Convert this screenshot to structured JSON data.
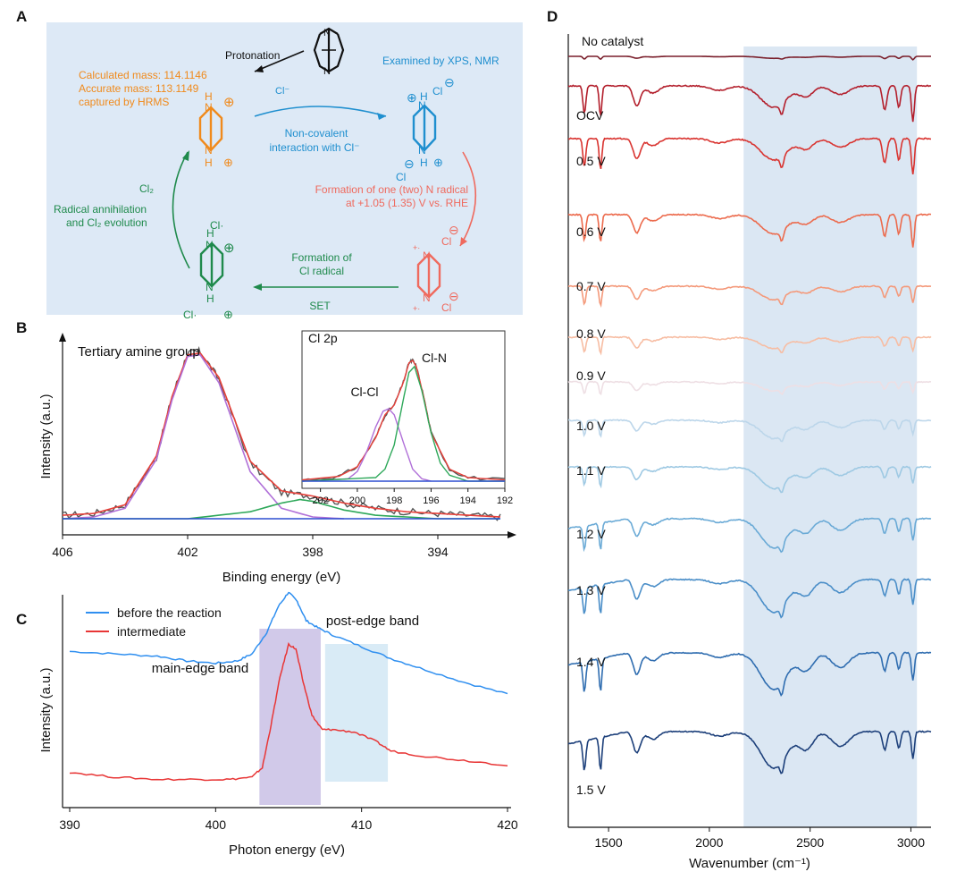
{
  "panels": {
    "A": "A",
    "B": "B",
    "C": "C",
    "D": "D"
  },
  "colors": {
    "scheme_bg": "#dde9f6",
    "orange": "#f08a1c",
    "blue": "#1f8fcf",
    "red": "#ef6a5e",
    "green": "#1f8a4c",
    "purple": "#9b3ad8"
  },
  "schemeA": {
    "protonation": "Protonation",
    "xps_nmr": "Examined by XPS, NMR",
    "calc_mass": "Calculated mass: 114.1146",
    "acc_mass": "Accurate mass: 113.1149",
    "captured": "captured by HRMS",
    "cl_minus": "Cl⁻",
    "noncov1": "Non-covalent",
    "noncov2": "interaction with Cl⁻",
    "form1": "Formation of one (two) N radical",
    "form2": "at +1.05 (1.35) V vs. RHE",
    "cl2": "Cl₂",
    "annih1": "Radical annihilation",
    "annih2": "and Cl₂ evolution",
    "formcl1": "Formation of",
    "formcl2": "Cl radical",
    "set": "SET",
    "N": "N",
    "H": "H",
    "Cl": "Cl",
    "cl_rad": "Cl·"
  },
  "chart_data": [
    {
      "id": "B",
      "type": "line",
      "xlabel": "Binding energy (eV)",
      "ylabel": "Intensity (a.u.)",
      "xlim": [
        406,
        392
      ],
      "xticks": [
        406,
        402,
        398,
        394
      ],
      "annotation": "Tertiary amine group",
      "series": [
        {
          "color": "#555555",
          "x": [
            406,
            405,
            404,
            403,
            402.5,
            402,
            401.6,
            401,
            400,
            399,
            398,
            397,
            396,
            395,
            394,
            393,
            392
          ],
          "y": [
            0.02,
            0.03,
            0.08,
            0.35,
            0.7,
            0.95,
            0.96,
            0.8,
            0.32,
            0.15,
            0.13,
            0.09,
            0.06,
            0.04,
            0.03,
            0.02,
            0.01
          ]
        },
        {
          "color": "#e8403a",
          "x": [
            406,
            405,
            404,
            403,
            402.5,
            402,
            401.6,
            401,
            400,
            399,
            398,
            397,
            396,
            395,
            394,
            393,
            392
          ],
          "y": [
            0.02,
            0.03,
            0.08,
            0.36,
            0.7,
            0.94,
            0.95,
            0.81,
            0.33,
            0.16,
            0.13,
            0.09,
            0.06,
            0.04,
            0.03,
            0.02,
            0.01
          ]
        },
        {
          "color": "#b070d8",
          "x": [
            406,
            405,
            404,
            403,
            402.5,
            402,
            401.6,
            401,
            400,
            399,
            398,
            397
          ],
          "y": [
            0.0,
            0.01,
            0.06,
            0.34,
            0.68,
            0.93,
            0.94,
            0.78,
            0.27,
            0.06,
            0.01,
            0.0
          ]
        },
        {
          "color": "#2ea85a",
          "x": [
            406,
            402,
            400,
            399,
            398.4,
            398,
            397,
            396,
            394,
            392
          ],
          "y": [
            0.0,
            0.0,
            0.04,
            0.09,
            0.11,
            0.1,
            0.05,
            0.02,
            0.0,
            0.0
          ]
        },
        {
          "color": "#2d4fd0",
          "x": [
            406,
            392
          ],
          "y": [
            0.0,
            0.0
          ]
        }
      ],
      "inset": {
        "title": "Cl 2p",
        "xlim": [
          203,
          192
        ],
        "xticks": [
          202,
          200,
          198,
          196,
          194,
          192
        ],
        "labels": [
          "Cl-Cl",
          "Cl-N"
        ],
        "series": [
          {
            "color": "#555555",
            "x": [
              203,
              201,
              200,
              199,
              198.5,
              198,
              197.5,
              197.2,
              197,
              196.8,
              196.4,
              196,
              195,
              194,
              192
            ],
            "y": [
              0.01,
              0.04,
              0.12,
              0.36,
              0.55,
              0.63,
              0.82,
              0.98,
              1.0,
              0.95,
              0.7,
              0.4,
              0.1,
              0.03,
              0.01
            ]
          },
          {
            "color": "#e8403a",
            "x": [
              203,
              201,
              200,
              199,
              198.5,
              198,
              197.5,
              197.2,
              197,
              196.8,
              196.4,
              196,
              195,
              194,
              192
            ],
            "y": [
              0.01,
              0.04,
              0.12,
              0.36,
              0.55,
              0.63,
              0.82,
              0.98,
              1.0,
              0.95,
              0.7,
              0.4,
              0.1,
              0.03,
              0.01
            ]
          },
          {
            "color": "#b070d8",
            "x": [
              203,
              200.5,
              200,
              199.5,
              199,
              198.6,
              198.3,
              198,
              197.5,
              197,
              196.5,
              196
            ],
            "y": [
              0.0,
              0.02,
              0.08,
              0.24,
              0.45,
              0.58,
              0.6,
              0.55,
              0.32,
              0.1,
              0.02,
              0.0
            ]
          },
          {
            "color": "#2ea85a",
            "x": [
              203,
              199,
              198.5,
              198,
              197.5,
              197.2,
              196.9,
              196.5,
              196,
              195.5,
              195,
              194,
              192
            ],
            "y": [
              0.0,
              0.03,
              0.1,
              0.3,
              0.68,
              0.9,
              0.95,
              0.75,
              0.4,
              0.15,
              0.05,
              0.0,
              0.0
            ]
          },
          {
            "color": "#2d4fd0",
            "x": [
              203,
              192
            ],
            "y": [
              0.0,
              0.0
            ]
          }
        ]
      }
    },
    {
      "id": "C",
      "type": "line",
      "xlabel": "Photon energy (eV)",
      "ylabel": "Intensity (a.u.)",
      "xlim": [
        390,
        420
      ],
      "xticks": [
        390,
        400,
        410,
        420
      ],
      "bands": [
        {
          "label": "main-edge band",
          "x": [
            403,
            407.2
          ],
          "color": "#c9bfe5"
        },
        {
          "label": "post-edge band",
          "x": [
            407.5,
            411.8
          ],
          "color": "#d2e8f5"
        }
      ],
      "series": [
        {
          "name": "before the reaction",
          "color": "#2f8ff0",
          "x": [
            390,
            393,
            396,
            398,
            400,
            401.5,
            402.5,
            403.5,
            404.3,
            405,
            405.6,
            406.2,
            407,
            408,
            410,
            412,
            414,
            417,
            420
          ],
          "y": [
            0.61,
            0.6,
            0.59,
            0.57,
            0.56,
            0.57,
            0.6,
            0.69,
            0.8,
            0.86,
            0.82,
            0.74,
            0.71,
            0.68,
            0.63,
            0.58,
            0.54,
            0.48,
            0.43
          ]
        },
        {
          "name": "intermediate",
          "color": "#e83636",
          "x": [
            390,
            393,
            396,
            399,
            401,
            402.5,
            403.2,
            403.8,
            404.4,
            405,
            405.5,
            406,
            406.6,
            407.3,
            408,
            409.5,
            411,
            412,
            414,
            417,
            420
          ],
          "y": [
            0.1,
            0.08,
            0.07,
            0.07,
            0.07,
            0.08,
            0.12,
            0.3,
            0.5,
            0.64,
            0.62,
            0.48,
            0.34,
            0.28,
            0.28,
            0.27,
            0.23,
            0.19,
            0.17,
            0.15,
            0.13
          ]
        }
      ]
    },
    {
      "id": "D",
      "type": "line",
      "xlabel": "Wavenumber (cm⁻¹)",
      "xlim": [
        1300,
        3100
      ],
      "xticks": [
        1500,
        2000,
        2500,
        3000
      ],
      "band": {
        "x": [
          2170,
          3030
        ],
        "color": "#dbe7f3"
      },
      "series": [
        {
          "name": "No catalyst",
          "color": "#7a1f2b",
          "depth": 0.15
        },
        {
          "name": "OCV",
          "color": "#b31f2c",
          "depth": 1.0
        },
        {
          "name": "0.5 V",
          "color": "#d9332f",
          "depth": 1.0
        },
        {
          "name": "0.6 V",
          "color": "#ec6a4c",
          "depth": 0.9
        },
        {
          "name": "0.7 V",
          "color": "#f4997a",
          "depth": 0.6
        },
        {
          "name": "0.8 V",
          "color": "#f7bda3",
          "depth": 0.5
        },
        {
          "name": "0.9 V",
          "color": "#eedfe4",
          "depth": 0.4
        },
        {
          "name": "1.0 V",
          "color": "#bcd6ea",
          "depth": 0.5
        },
        {
          "name": "1.1 V",
          "color": "#9ec9e3",
          "depth": 0.6
        },
        {
          "name": "1.2 V",
          "color": "#6aaad6",
          "depth": 0.8
        },
        {
          "name": "1.3 V",
          "color": "#4a8ec8",
          "depth": 0.9
        },
        {
          "name": "1.4 V",
          "color": "#2f6db0",
          "depth": 1.0
        },
        {
          "name": "1.5 V",
          "color": "#1c3f7a",
          "depth": 1.0
        }
      ]
    }
  ]
}
